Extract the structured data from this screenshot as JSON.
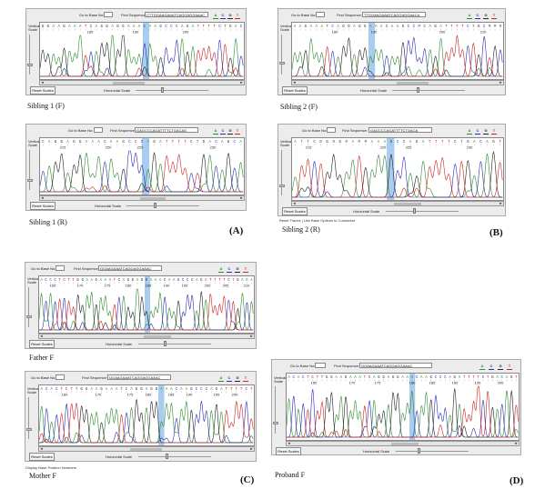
{
  "common": {
    "goto_label": "Go to Base No:",
    "find_label": "Find Sequence:",
    "vertical_scale": "Vertical Scale",
    "horizontal_scale": "Horizontal Scale",
    "reset_scales": "Reset Scales",
    "left_arrow": "◄",
    "right_arrow": "►",
    "trace_buttons": [
      "A",
      "C",
      "G",
      "T"
    ],
    "trace_colors": [
      "#2e8b2e",
      "#2a2ab8",
      "#222222",
      "#d12020"
    ],
    "highlight_color": "#a9cdf0"
  },
  "windows": [
    {
      "id": "w1",
      "find_value": "CTTGGAAGAAATCAGGAGGAAAC",
      "bases": "GGAAGAAATCAGGAGGAAACAAGCCCAGATTTTCTGAC",
      "ticks": [
        "180",
        "190",
        "200"
      ],
      "caption": "Sibling 1 (F)"
    },
    {
      "id": "w2",
      "find_value": "TTGGAAGAAATCAGGAGGAACA",
      "bases": "AAGAAATCAGGAGGAAACAAGCCMCAGATTTTCTGCMMR",
      "ticks": [
        "180",
        "190",
        "200",
        "210"
      ],
      "caption": "Sibling 2 (F)"
    },
    {
      "id": "w3",
      "find_value": "GAGCCCAGATTTTCTGACAG",
      "bases": "CAGGAGGAAACAAGCCCAGATTTTCTGACAGCA",
      "ticks": [
        "215",
        "220",
        "225",
        "230"
      ],
      "caption": "Sibling 1 (R)"
    },
    {
      "id": "w4",
      "find_value": "GAGCCCAGATTTTCTGACA",
      "bases": "ATTCRGRGRAMMAAAGCCAGATTTTCTGACAGT",
      "ticks": [
        "215",
        "220",
        "225",
        "230"
      ],
      "caption": "Sibling 2 (R)"
    },
    {
      "id": "w5",
      "find_value": "GGAAGAAATCAGGAGGAAAC",
      "bases": "ACACTCTTGGAAGAAATCAGGAGGAAACAAGCCCAGATTTTCTGACA",
      "ticks": [
        "165",
        "170",
        "175",
        "180",
        "185",
        "190",
        "195",
        "200",
        "205",
        "210"
      ],
      "caption": "Father F"
    },
    {
      "id": "w6",
      "find_value": "GGAAGAAATCAGGAGGAAAC",
      "bases": "ACACTCTTGGAAGAAATCAGGAGGAAACAAGCCCAGATTTTCT",
      "ticks": [
        "160",
        "170",
        "175",
        "180",
        "185",
        "190",
        "195",
        "200"
      ],
      "caption": "Mother F"
    },
    {
      "id": "w7",
      "find_value": "GGAAGAAATCAGGAGGAAAC",
      "bases": "ACACTCTTGGAAGAAATCAGGAGGAAACAAGCCCAGATTTTCTGACAGT",
      "ticks": [
        "165",
        "170",
        "175",
        "180",
        "185",
        "190",
        "195",
        "200"
      ],
      "caption": "Proband F"
    }
  ],
  "panel_labels": {
    "a": "(A)",
    "b": "(B)",
    "c": "(C)",
    "d": "(D)"
  },
  "notes": {
    "w4_below": "Reset Traces | Use Base Options to Customize",
    "w6_below": "Display Base Position Numbers"
  }
}
